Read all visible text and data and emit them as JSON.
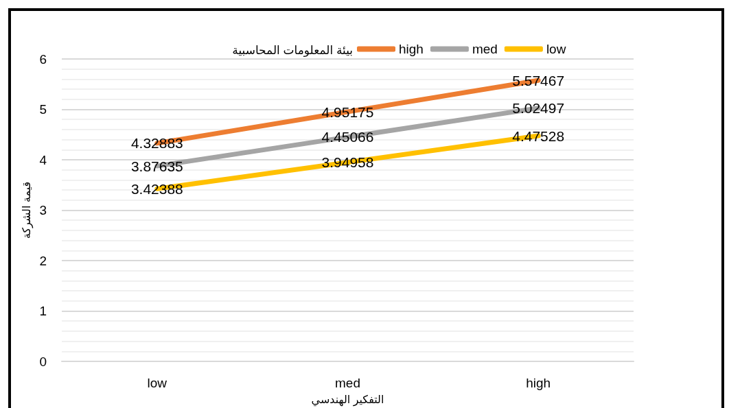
{
  "chart_data": {
    "type": "line",
    "xlabel": "التفكير الهندسي",
    "ylabel": "قيمة الشركة",
    "legend_title": "بيئة المعلومات المحاسبية",
    "categories": [
      "low",
      "med",
      "high"
    ],
    "series": [
      {
        "name": "high",
        "color": "#ed7d31",
        "values": [
          4.32883,
          4.95175,
          5.57467
        ]
      },
      {
        "name": "med",
        "color": "#a5a5a5",
        "values": [
          3.87635,
          4.45066,
          5.02497
        ]
      },
      {
        "name": "low",
        "color": "#ffc000",
        "values": [
          3.42388,
          3.94958,
          4.47528
        ]
      }
    ],
    "ylim": [
      0,
      6
    ],
    "yticks": [
      0,
      {
        "value": 0.2,
        "label": null
      },
      {
        "value": 0.4,
        "label": null
      },
      {
        "value": 0.6,
        "label": null
      },
      {
        "value": 0.8,
        "label": null
      },
      1,
      {
        "value": 1.2,
        "label": null
      },
      {
        "value": 1.4,
        "label": null
      },
      {
        "value": 1.6,
        "label": null
      },
      {
        "value": 1.8,
        "label": null
      },
      2,
      {
        "value": 2.2,
        "label": null
      },
      {
        "value": 2.4,
        "label": null
      },
      {
        "value": 2.6,
        "label": null
      },
      {
        "value": 2.8,
        "label": null
      },
      3,
      {
        "value": 3.2,
        "label": null
      },
      {
        "value": 3.4,
        "label": null
      },
      {
        "value": 3.6,
        "label": null
      },
      {
        "value": 3.8,
        "label": null
      },
      4,
      {
        "value": 4.2,
        "label": null
      },
      {
        "value": 4.4,
        "label": null
      },
      {
        "value": 4.6,
        "label": null
      },
      {
        "value": 4.8,
        "label": null
      },
      5,
      {
        "value": 5.2,
        "label": null
      },
      {
        "value": 5.4,
        "label": null
      },
      {
        "value": 5.6,
        "label": null
      },
      {
        "value": 5.8,
        "label": null
      },
      6
    ],
    "grid": "y",
    "legend": "top",
    "data_labels": true,
    "marker": "none",
    "line_style": "solid"
  }
}
